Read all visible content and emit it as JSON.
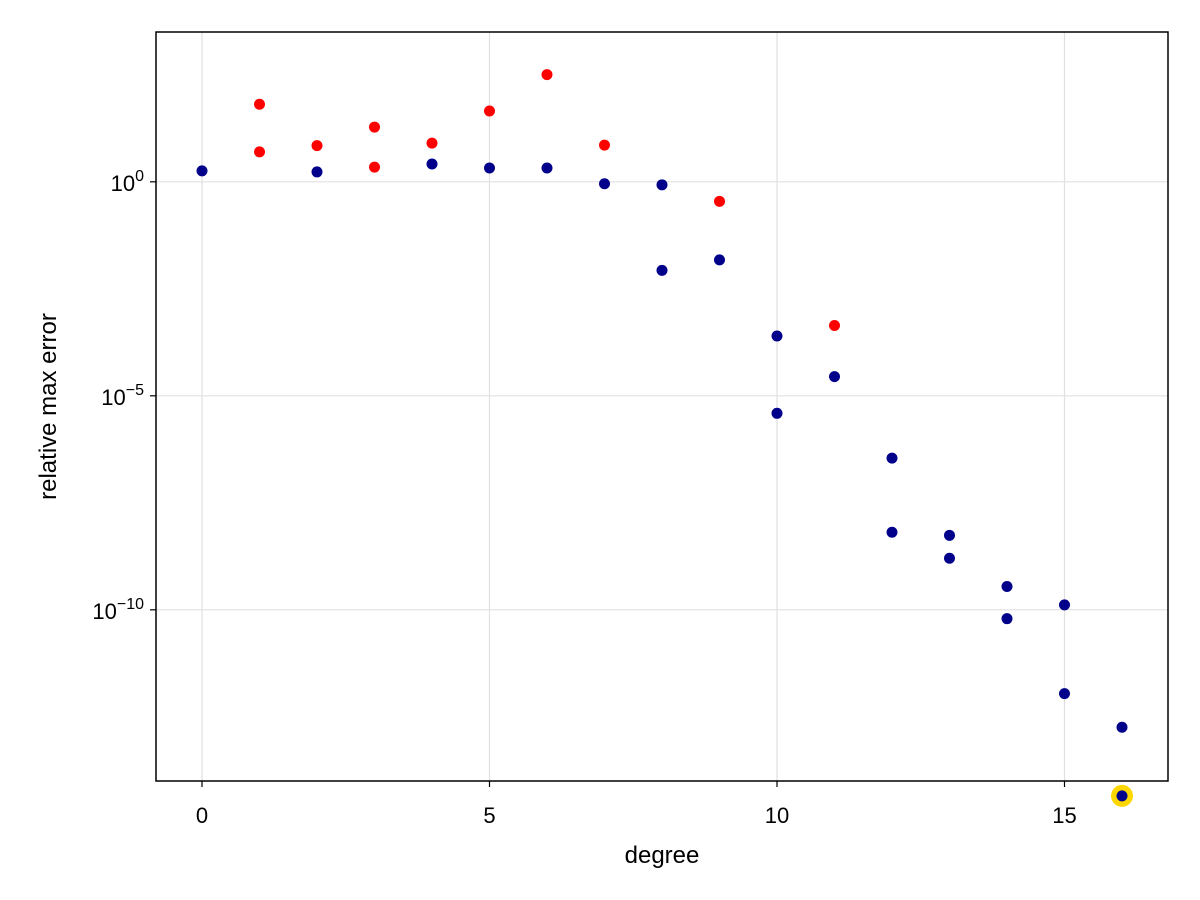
{
  "chart_data": {
    "type": "scatter",
    "xlabel": "degree",
    "ylabel": "relative max error",
    "y_scale": "log10",
    "xlim": [
      -0.8,
      16.8
    ],
    "ylim_log10": [
      -14.0,
      3.5
    ],
    "grid": true,
    "x_ticks": [
      0,
      5,
      10,
      15
    ],
    "y_ticks": [
      {
        "base": "10",
        "exp": "0",
        "value": 1
      },
      {
        "base": "10",
        "exp": "−5",
        "value": 1e-05
      },
      {
        "base": "10",
        "exp": "−10",
        "value": 1e-10
      }
    ],
    "colors": {
      "red": "#ff0000",
      "navy": "#00008b",
      "highlight": "#ffd700",
      "grid": "#e0e0e0",
      "frame": "#000000"
    },
    "series": [
      {
        "color": "#ff0000",
        "points": [
          {
            "x": 1,
            "y": 65
          },
          {
            "x": 1,
            "y": 5
          },
          {
            "x": 2,
            "y": 7
          },
          {
            "x": 3,
            "y": 19
          },
          {
            "x": 3,
            "y": 2.2
          },
          {
            "x": 4,
            "y": 8
          },
          {
            "x": 5,
            "y": 45
          },
          {
            "x": 6,
            "y": 320
          },
          {
            "x": 7,
            "y": 7.2
          },
          {
            "x": 9,
            "y": 0.35
          },
          {
            "x": 11,
            "y": 0.00044
          }
        ]
      },
      {
        "color": "#00008b",
        "points": [
          {
            "x": 0,
            "y": 1.8
          },
          {
            "x": 2,
            "y": 1.7
          },
          {
            "x": 4,
            "y": 2.6
          },
          {
            "x": 5,
            "y": 2.1
          },
          {
            "x": 6,
            "y": 2.1
          },
          {
            "x": 7,
            "y": 0.9
          },
          {
            "x": 8,
            "y": 0.85
          },
          {
            "x": 8,
            "y": 0.0085
          },
          {
            "x": 9,
            "y": 0.015
          },
          {
            "x": 10,
            "y": 0.00025
          },
          {
            "x": 10,
            "y": 3.9e-06
          },
          {
            "x": 11,
            "y": 2.8e-05
          },
          {
            "x": 12,
            "y": 3.5e-07
          },
          {
            "x": 12,
            "y": 6.5e-09
          },
          {
            "x": 13,
            "y": 5.5e-09
          },
          {
            "x": 13,
            "y": 1.6e-09
          },
          {
            "x": 14,
            "y": 3.5e-10
          },
          {
            "x": 14,
            "y": 6.2e-11
          },
          {
            "x": 15,
            "y": 1.3e-10
          },
          {
            "x": 15,
            "y": 1.1e-12
          },
          {
            "x": 16,
            "y": 1.8e-13
          },
          {
            "x": 16,
            "y": 4.5e-15,
            "highlight": true
          }
        ]
      }
    ]
  }
}
